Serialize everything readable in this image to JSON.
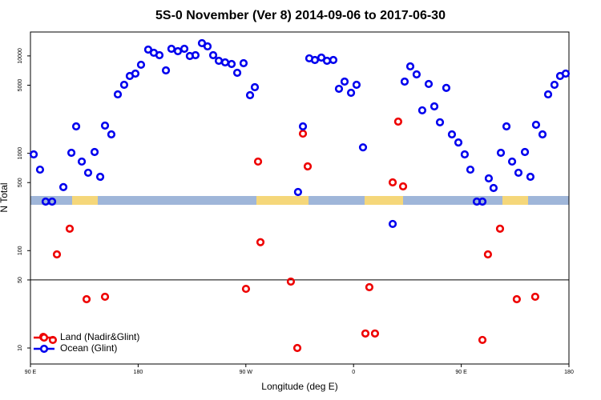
{
  "chart_data": {
    "type": "scatter",
    "title": "5S-0 November (Ver 8)   2014-09-06 to 2017-06-30",
    "x_label": "Longitude (deg E)",
    "y_label": "N Total",
    "xlim": [
      90,
      540
    ],
    "xticks": [
      {
        "value": 90,
        "label": "90 E"
      },
      180,
      {
        "value": 270,
        "label": "90 W"
      },
      {
        "value": 360,
        "label": "0"
      },
      {
        "value": 450,
        "label": "90 E"
      },
      {
        "value": 540,
        "label": "180"
      }
    ],
    "ylim": [
      6.85,
      17600
    ],
    "log_y": true,
    "yticks": [
      10,
      50,
      100,
      500,
      1000,
      5000,
      10000
    ],
    "reference_line": 50,
    "legend": "bottom-left",
    "series": [
      {
        "name": "Land (Nadir&Glint)",
        "color": "#ee0000",
        "x": [
          100.7,
          108.7,
          112.1,
          122.8,
          136.9,
          152.3,
          270.1,
          280.2,
          282.2,
          307.6,
          313.0,
          317.7,
          321.7,
          369.9,
          373.2,
          377.9,
          392.7,
          397.3,
          401.4,
          467.7,
          472.3,
          482.4,
          496.4,
          511.8
        ],
        "values": [
          13,
          12.1,
          91.5,
          168,
          31.7,
          33.6,
          40.5,
          822,
          122,
          48.1,
          10,
          1590,
          733,
          14.1,
          42.1,
          14.1,
          502,
          2115,
          457,
          12.1,
          91.5,
          168,
          31.7,
          33.6
        ]
      },
      {
        "name": "Ocean (Glint)",
        "color": "#0000ee",
        "x": [
          92.7,
          98,
          102.7,
          108.1,
          117.5,
          124.2,
          128.2,
          132.9,
          138.2,
          143.6,
          148.3,
          152.3,
          157.6,
          163,
          168.3,
          173,
          177.7,
          182.4,
          188.4,
          193.1,
          197.8,
          203.2,
          207.8,
          213.2,
          218.6,
          223.2,
          227.9,
          233.3,
          238,
          242.7,
          247.4,
          252.7,
          258.1,
          262.8,
          268.1,
          273.5,
          277.5,
          313.6,
          317.7,
          323,
          327.7,
          333.1,
          337.8,
          343.1,
          347.8,
          352.5,
          357.9,
          362.5,
          367.9,
          392.7,
          402.7,
          407.4,
          412.7,
          417.4,
          422.8,
          427.5,
          432.2,
          437.5,
          442.2,
          447.6,
          452.9,
          457.6,
          463,
          467.7,
          473,
          477,
          483.1,
          487.8,
          492.5,
          497.8,
          503.2,
          507.8,
          512.5,
          517.9,
          522.6,
          527.9,
          532.6,
          537.3
        ],
        "values": [
          973,
          679,
          319,
          319,
          449,
          1011,
          1888,
          822,
          631,
          1030,
          573,
          1924,
          1563,
          4027,
          5050,
          6220,
          6580,
          8110,
          11600,
          10770,
          10170,
          7100,
          11830,
          11170,
          11830,
          9980,
          10170,
          13520,
          12530,
          10170,
          8910,
          8580,
          8260,
          6710,
          8410,
          3950,
          4770,
          400,
          1888,
          9440,
          9080,
          9610,
          8910,
          9080,
          4590,
          5450,
          4180,
          5050,
          1150,
          188,
          5450,
          7800,
          6460,
          2760,
          5150,
          3030,
          2080,
          4690,
          1563,
          1290,
          973,
          679,
          319,
          319,
          552,
          440,
          1011,
          1888,
          822,
          631,
          1030,
          573,
          1960,
          1563,
          4027,
          5050,
          6220,
          6580
        ]
      }
    ]
  }
}
